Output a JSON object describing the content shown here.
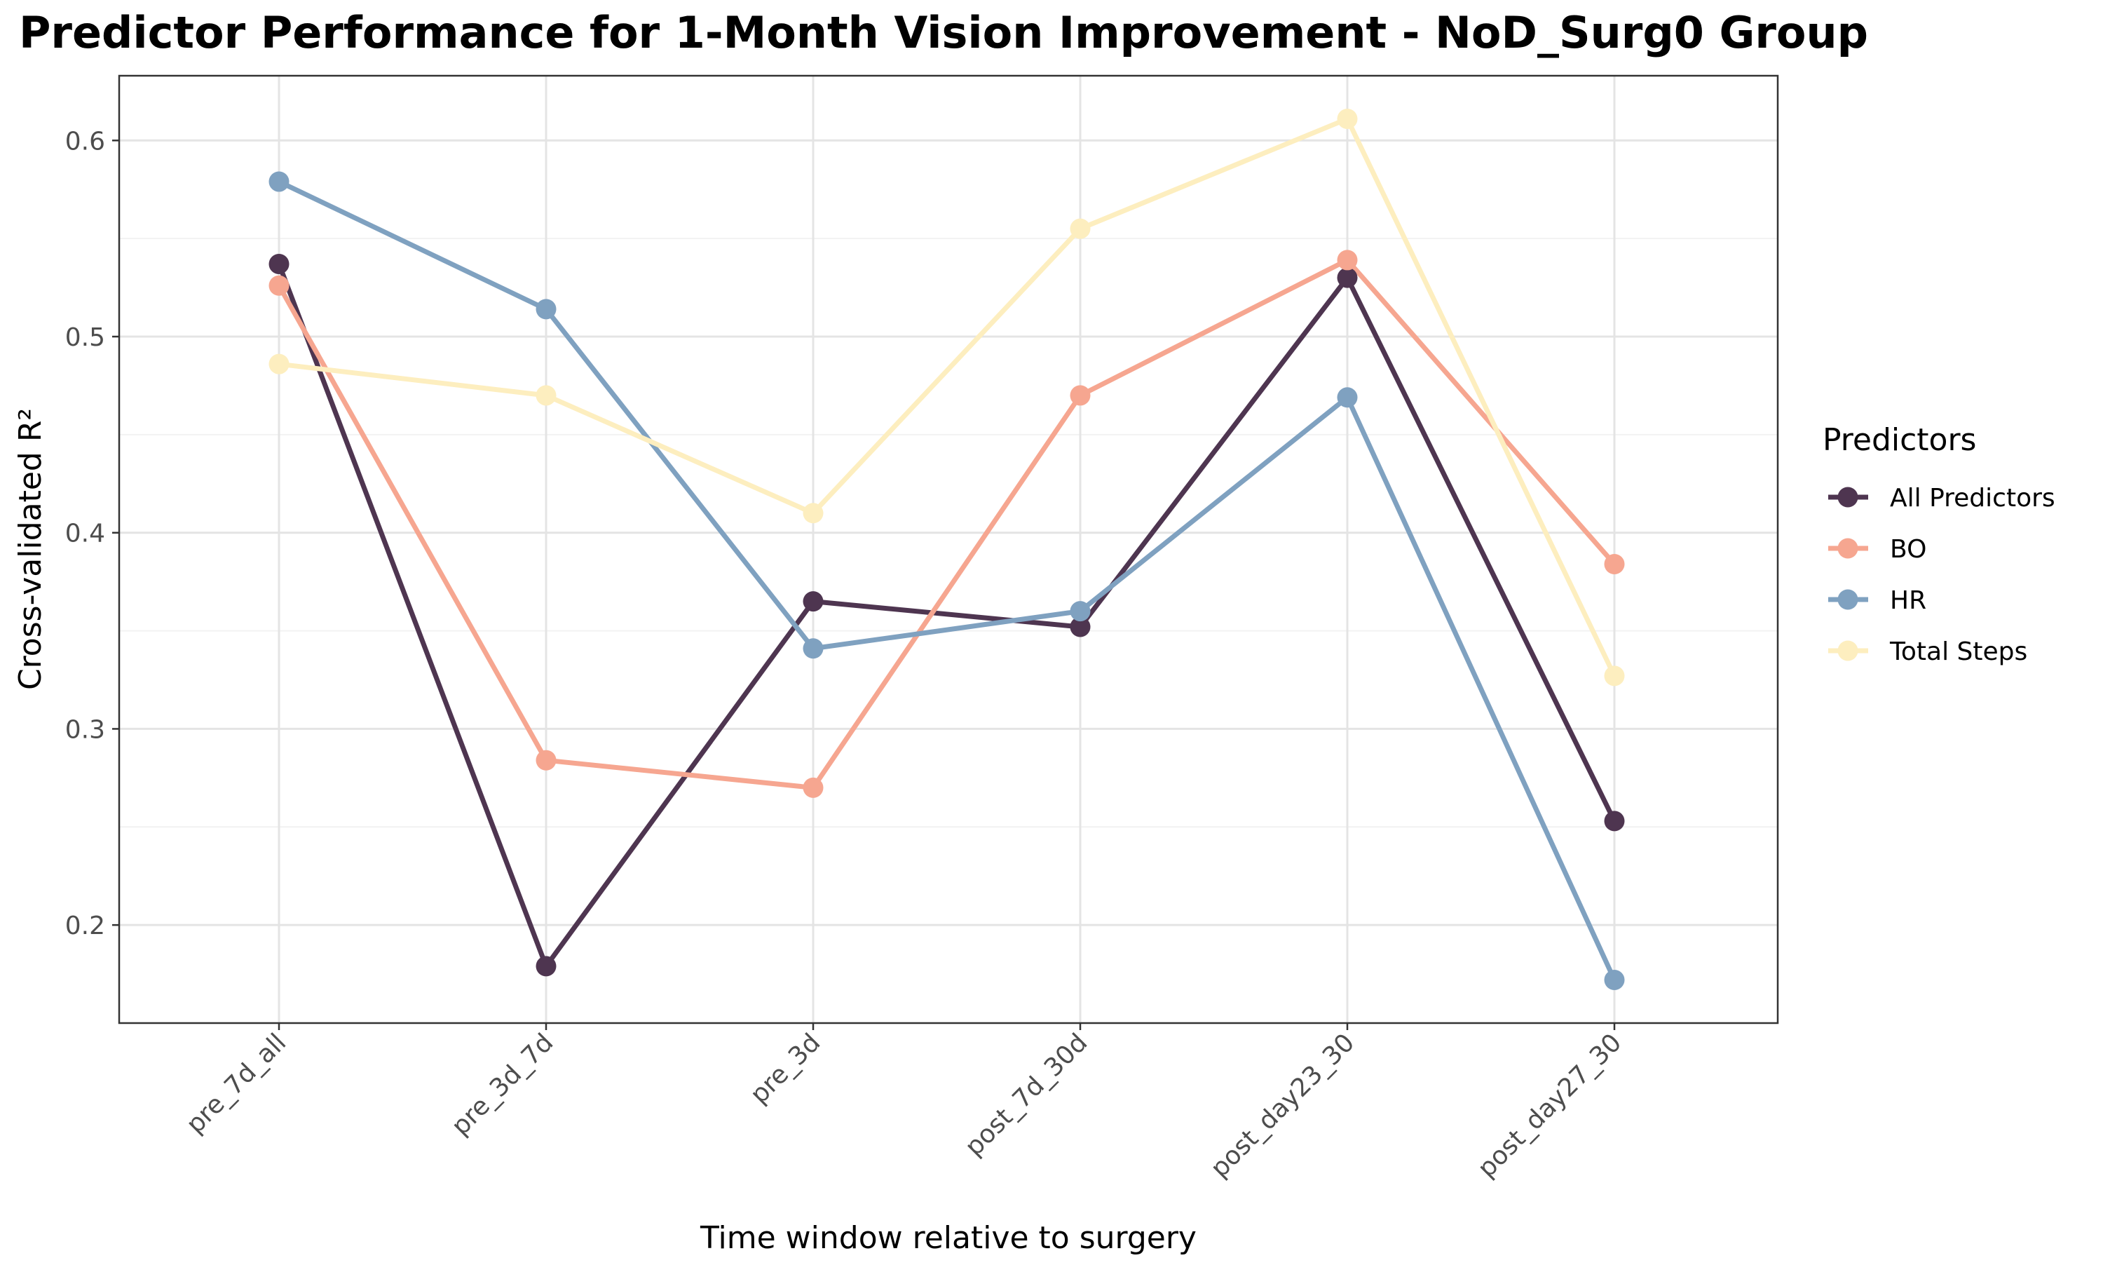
{
  "chart_data": {
    "type": "line",
    "title": "Predictor Performance for 1-Month Vision Improvement - NoD_Surg0 Group",
    "xlabel": "Time window relative to surgery",
    "ylabel": "Cross-validated R²",
    "categories": [
      "pre_7d_all",
      "pre_3d_7d",
      "pre_3d",
      "post_7d_30d",
      "post_day23_30",
      "post_day27_30"
    ],
    "ylim": [
      0.15,
      0.633
    ],
    "yticks": [
      0.2,
      0.3,
      0.4,
      0.5,
      0.6
    ],
    "ytick_labels": [
      "0.2",
      "0.3",
      "0.4",
      "0.5",
      "0.6"
    ],
    "grid": true,
    "legend": {
      "title": "Predictors",
      "position": "right"
    },
    "series": [
      {
        "name": "All Predictors",
        "color": "#4e3550",
        "values": [
          0.537,
          0.179,
          0.365,
          0.352,
          0.53,
          0.253
        ]
      },
      {
        "name": "BO",
        "color": "#f6a690",
        "values": [
          0.526,
          0.284,
          0.27,
          0.47,
          0.539,
          0.384
        ]
      },
      {
        "name": "HR",
        "color": "#7fa1c0",
        "values": [
          0.579,
          0.514,
          0.341,
          0.36,
          0.469,
          0.172
        ]
      },
      {
        "name": "Total Steps",
        "color": "#fdeebf",
        "values": [
          0.486,
          0.47,
          0.41,
          0.555,
          0.611,
          0.327
        ]
      }
    ]
  }
}
